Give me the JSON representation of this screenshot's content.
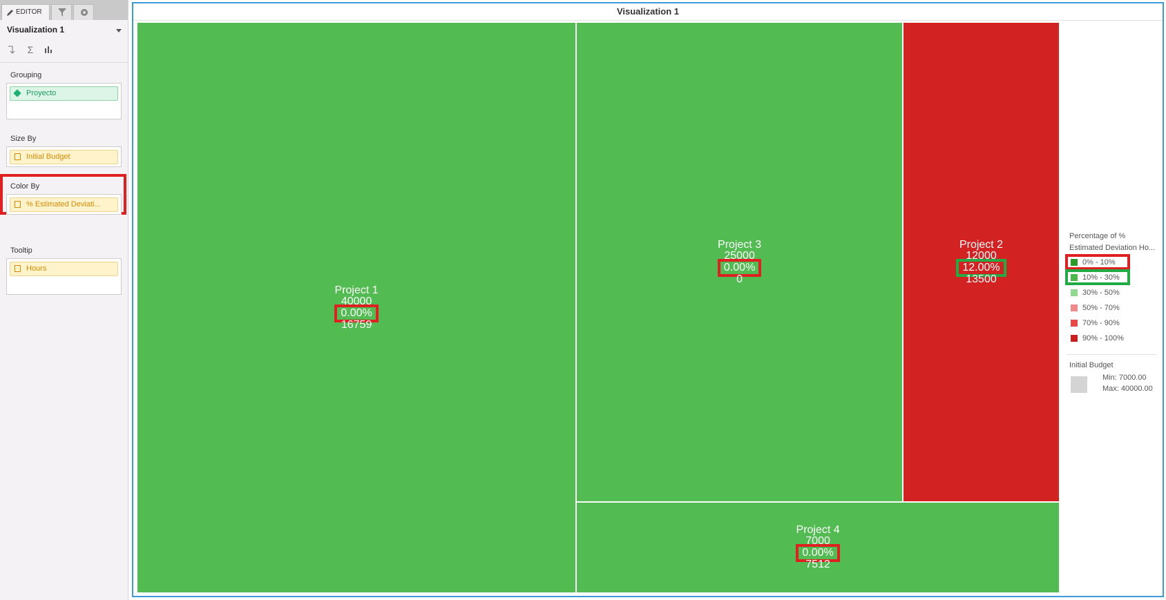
{
  "sidebar": {
    "tab": "EDITOR",
    "visualization": "Visualization 1",
    "sections": [
      {
        "label": "Grouping",
        "field": "Proyecto",
        "kind": "dimension"
      },
      {
        "label": "Size By",
        "field": "Initial Budget",
        "kind": "measure"
      },
      {
        "label": "Color By",
        "field": "% Estimated Deviati...",
        "kind": "measure",
        "highlight": "#e02020"
      },
      {
        "label": "Tooltip",
        "field": "Hours",
        "kind": "measure"
      }
    ]
  },
  "visualization": {
    "title": "Visualization 1",
    "tiles": [
      {
        "name": "Project 1",
        "budget": 40000,
        "deviation": "0.00%",
        "hours": 16759,
        "color": "#52bb52",
        "highlight": "#e02020"
      },
      {
        "name": "Project 3",
        "budget": 25000,
        "deviation": "0.00%",
        "hours": 0,
        "color": "#52bb52",
        "highlight": "#e02020"
      },
      {
        "name": "Project 2",
        "budget": 12000,
        "deviation": "12.00%",
        "hours": 13500,
        "color": "#d22222",
        "highlight": "#22aa44"
      },
      {
        "name": "Project 4",
        "budget": 7000,
        "deviation": "0.00%",
        "hours": 7512,
        "color": "#52bb52",
        "highlight": "#e02020"
      }
    ],
    "legend": {
      "title_lines": [
        "Percentage of %",
        "Estimated Deviation Ho..."
      ],
      "items": [
        {
          "label": "0% - 10%",
          "color": "#2a9a2a",
          "highlight": "#e02020"
        },
        {
          "label": "10% - 30%",
          "color": "#4cb84c",
          "highlight": "#22aa44"
        },
        {
          "label": "30% - 50%",
          "color": "#8fd88f"
        },
        {
          "label": "50% - 70%",
          "color": "#f08a8a"
        },
        {
          "label": "70% - 90%",
          "color": "#e84848"
        },
        {
          "label": "90% - 100%",
          "color": "#c81e1e"
        }
      ],
      "size_title": "Initial Budget",
      "size_min": "Min: 7000.00",
      "size_max": "Max: 40000.00"
    }
  }
}
